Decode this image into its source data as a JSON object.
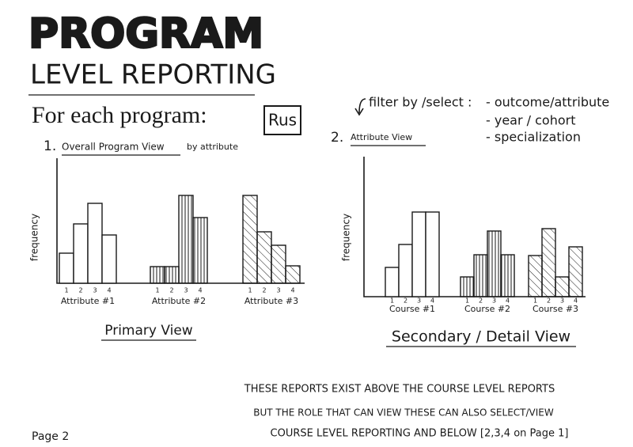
{
  "header": {
    "title": "PROGRAM",
    "subtitle": "LEVEL REPORTING"
  },
  "intro": {
    "text": "For each program:",
    "badge": "Rus"
  },
  "view_1": {
    "number": "1.",
    "title": "Overall Program View",
    "note": "by attribute",
    "y_label": "frequency",
    "bin_labels": [
      "1",
      "2",
      "3",
      "4"
    ],
    "groups": [
      "Attribute #1",
      "Attribute #2",
      "Attribute #3"
    ],
    "caption": "Primary View"
  },
  "view_2": {
    "number": "2.",
    "title": "Attribute View",
    "y_label": "frequency",
    "bin_labels": [
      "1",
      "2",
      "3",
      "4"
    ],
    "groups": [
      "Course #1",
      "Course #2",
      "Course #3"
    ],
    "caption": "Secondary / Detail View"
  },
  "filter": {
    "label": "filter by /select :",
    "options": [
      "- outcome/attribute",
      "- year / cohort",
      "- specialization"
    ]
  },
  "notes": [
    "THESE REPORTS EXIST ABOVE THE COURSE LEVEL REPORTS",
    "BUT THE ROLE THAT CAN VIEW THESE CAN ALSO SELECT/VIEW",
    "COURSE LEVEL REPORTING AND BELOW [2,3,4 on Page 1]"
  ],
  "footer": {
    "page": "Page 2"
  }
}
